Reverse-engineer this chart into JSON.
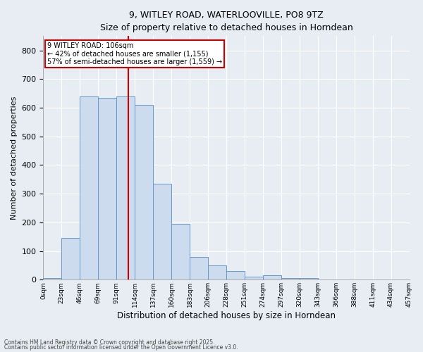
{
  "title_line1": "9, WITLEY ROAD, WATERLOOVILLE, PO8 9TZ",
  "title_line2": "Size of property relative to detached houses in Horndean",
  "xlabel": "Distribution of detached houses by size in Horndean",
  "ylabel": "Number of detached properties",
  "bar_color": "#ccdcee",
  "bar_edge_color": "#6699cc",
  "background_color": "#e8edf4",
  "grid_color": "#ffffff",
  "categories": [
    "0sqm",
    "23sqm",
    "46sqm",
    "69sqm",
    "91sqm",
    "114sqm",
    "137sqm",
    "160sqm",
    "183sqm",
    "206sqm",
    "228sqm",
    "251sqm",
    "274sqm",
    "297sqm",
    "320sqm",
    "343sqm",
    "366sqm",
    "388sqm",
    "411sqm",
    "434sqm",
    "457sqm"
  ],
  "bar_heights": [
    5,
    145,
    640,
    635,
    640,
    610,
    335,
    195,
    80,
    50,
    30,
    10,
    15,
    5,
    5,
    0,
    0,
    0,
    0,
    0
  ],
  "ylim": [
    0,
    850
  ],
  "yticks": [
    0,
    100,
    200,
    300,
    400,
    500,
    600,
    700,
    800
  ],
  "vline_color": "#cc0000",
  "vline_pos": 4.65,
  "annotation_title": "9 WITLEY ROAD: 106sqm",
  "annotation_line1": "← 42% of detached houses are smaller (1,155)",
  "annotation_line2": "57% of semi-detached houses are larger (1,559) →",
  "annotation_box_color": "#ffffff",
  "annotation_border_color": "#cc0000",
  "footnote1": "Contains HM Land Registry data © Crown copyright and database right 2025.",
  "footnote2": "Contains public sector information licensed under the Open Government Licence v3.0."
}
